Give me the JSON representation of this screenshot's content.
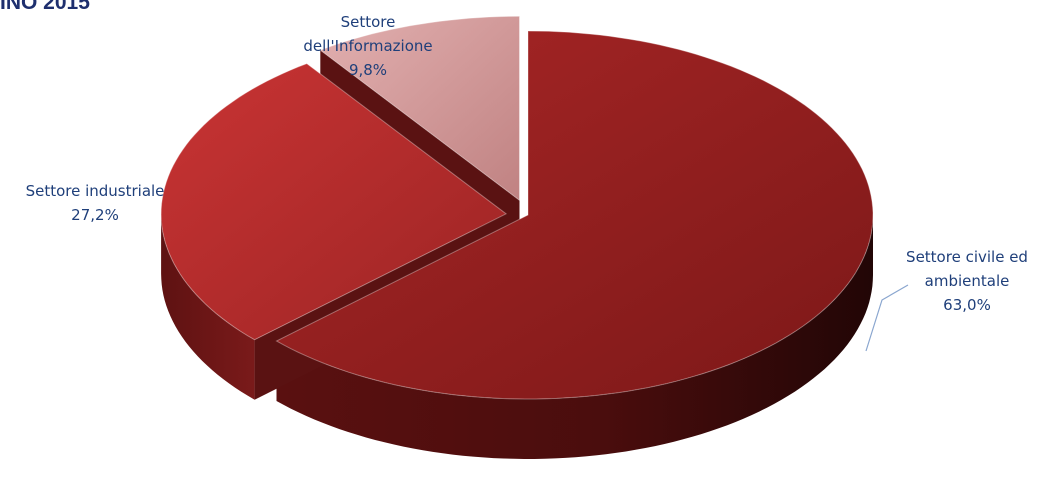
{
  "page_title": "INO 2015",
  "chart_data": {
    "type": "pie",
    "style": "3d-exploded",
    "title": "",
    "start": "top, clockwise",
    "slices": [
      {
        "name_lines": [
          "Settore civile ed",
          "ambientale"
        ],
        "value": 63.0,
        "value_label": "63,0%",
        "color": "#9b2222"
      },
      {
        "name_lines": [
          "Settore industriale"
        ],
        "value": 27.2,
        "value_label": "27,2%",
        "color": "#b32b2b"
      },
      {
        "name_lines": [
          "Settore",
          "dell'Informazione"
        ],
        "value": 9.8,
        "value_label": "9,8%",
        "color": "#d79a9a"
      }
    ]
  }
}
